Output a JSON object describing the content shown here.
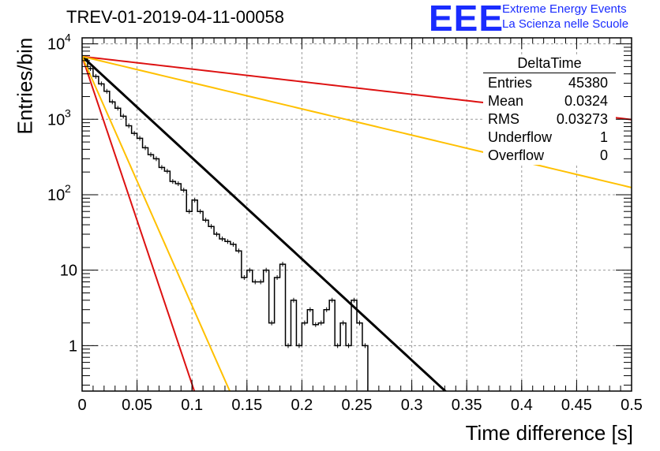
{
  "title": "TREV-01-2019-04-11-00058",
  "logo": {
    "mark": "EEE",
    "line1": "Extreme Energy Events",
    "line2": "La Scienza nelle Scuole",
    "color": "#1a2cff"
  },
  "stats_box": {
    "name": "DeltaTime",
    "rows": [
      {
        "label": "Entries",
        "value": "45380"
      },
      {
        "label": "Mean",
        "value": "0.0324"
      },
      {
        "label": "RMS",
        "value": "0.03273"
      },
      {
        "label": "Underflow",
        "value": "1"
      },
      {
        "label": "Overflow",
        "value": "0"
      }
    ]
  },
  "chart_data": {
    "type": "line",
    "title": "TREV-01-2019-04-11-00058",
    "xlabel": "Time difference [s]",
    "ylabel": "Entries/bin",
    "xlim": [
      0,
      0.5
    ],
    "ylim": [
      0.25,
      12000
    ],
    "yscale": "log",
    "grid": true,
    "x_ticks": [
      "0",
      "0.05",
      "0.1",
      "0.15",
      "0.2",
      "0.25",
      "0.3",
      "0.35",
      "0.4",
      "0.45",
      "0.5"
    ],
    "x_tick_values": [
      0,
      0.05,
      0.1,
      0.15,
      0.2,
      0.25,
      0.3,
      0.35,
      0.4,
      0.45,
      0.5
    ],
    "y_ticks": [
      "1",
      "10"
    ],
    "y_tick_values": [
      1,
      10
    ],
    "y_power_ticks": [
      {
        "value": 100,
        "base": "10",
        "exp": "2"
      },
      {
        "value": 1000,
        "base": "10",
        "exp": "3"
      },
      {
        "value": 10000,
        "base": "10",
        "exp": "4"
      }
    ],
    "histogram": {
      "color": "#000000",
      "bin_width": 0.005,
      "x_start": 0,
      "values": [
        6300,
        4700,
        3700,
        2950,
        2350,
        1700,
        1400,
        1100,
        820,
        650,
        560,
        420,
        340,
        300,
        230,
        205,
        150,
        140,
        115,
        60,
        85,
        60,
        46,
        38,
        30,
        26,
        24,
        22,
        18,
        8,
        10,
        7,
        7,
        10,
        2,
        8,
        12,
        1,
        4,
        1,
        2,
        3,
        1.9,
        2,
        3,
        4,
        1,
        2,
        1,
        4,
        2,
        1
      ]
    },
    "series": [
      {
        "color": "#000000",
        "a": 6800,
        "lambda": 30.9,
        "x_start": 0,
        "x_end": 0.34
      },
      {
        "color": "#dd1111",
        "a": 6800,
        "lambda": 3.85,
        "x_start": 0,
        "x_end": 0.5
      },
      {
        "color": "#dd1111",
        "a": 6800,
        "lambda": 100,
        "x_start": 0,
        "x_end": 0.12
      },
      {
        "color": "#ffc000",
        "a": 6800,
        "lambda": 8.0,
        "x_start": 0,
        "x_end": 0.5
      },
      {
        "color": "#ffc000",
        "a": 6800,
        "lambda": 76,
        "x_start": 0,
        "x_end": 0.16
      }
    ]
  }
}
